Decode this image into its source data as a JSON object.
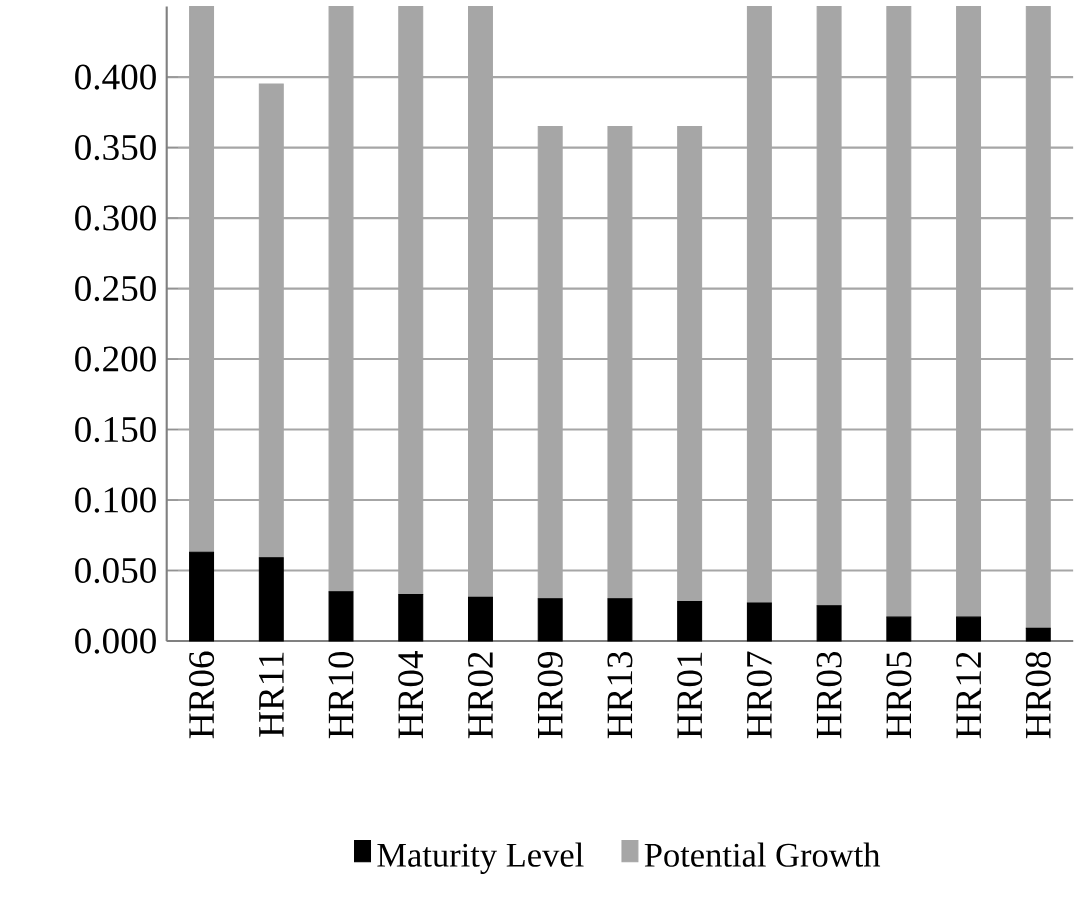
{
  "chart_data": {
    "type": "bar",
    "stacked": true,
    "categories": [
      "HR06",
      "HR11",
      "HR10",
      "HR04",
      "HR02",
      "HR09",
      "HR13",
      "HR01",
      "HR07",
      "HR03",
      "HR05",
      "HR12",
      "HR08"
    ],
    "series": [
      {
        "name": "Maturity  Level",
        "color": "#000000",
        "values": [
          0.063,
          0.059,
          0.035,
          0.033,
          0.031,
          0.03,
          0.03,
          0.028,
          0.027,
          0.025,
          0.017,
          0.017,
          0.009
        ]
      },
      {
        "name": "Potential Growth",
        "color": "#a6a6a6",
        "values": [
          0.387,
          0.336,
          0.415,
          0.417,
          0.419,
          0.335,
          0.335,
          0.337,
          0.423,
          0.425,
          0.433,
          0.433,
          0.441
        ]
      }
    ],
    "ylim": [
      0,
      0.45
    ],
    "yticks": [
      {
        "value": 0,
        "label": "0.000"
      },
      {
        "value": 0.05,
        "label": "0.050"
      },
      {
        "value": 0.1,
        "label": "0.100"
      },
      {
        "value": 0.15,
        "label": "0.150"
      },
      {
        "value": 0.2,
        "label": "0.200"
      },
      {
        "value": 0.25,
        "label": "0.250"
      },
      {
        "value": 0.3,
        "label": "0.300"
      },
      {
        "value": 0.35,
        "label": "0.350"
      },
      {
        "value": 0.4,
        "label": "0.400"
      }
    ],
    "grid": "y",
    "legend": "bottom"
  }
}
